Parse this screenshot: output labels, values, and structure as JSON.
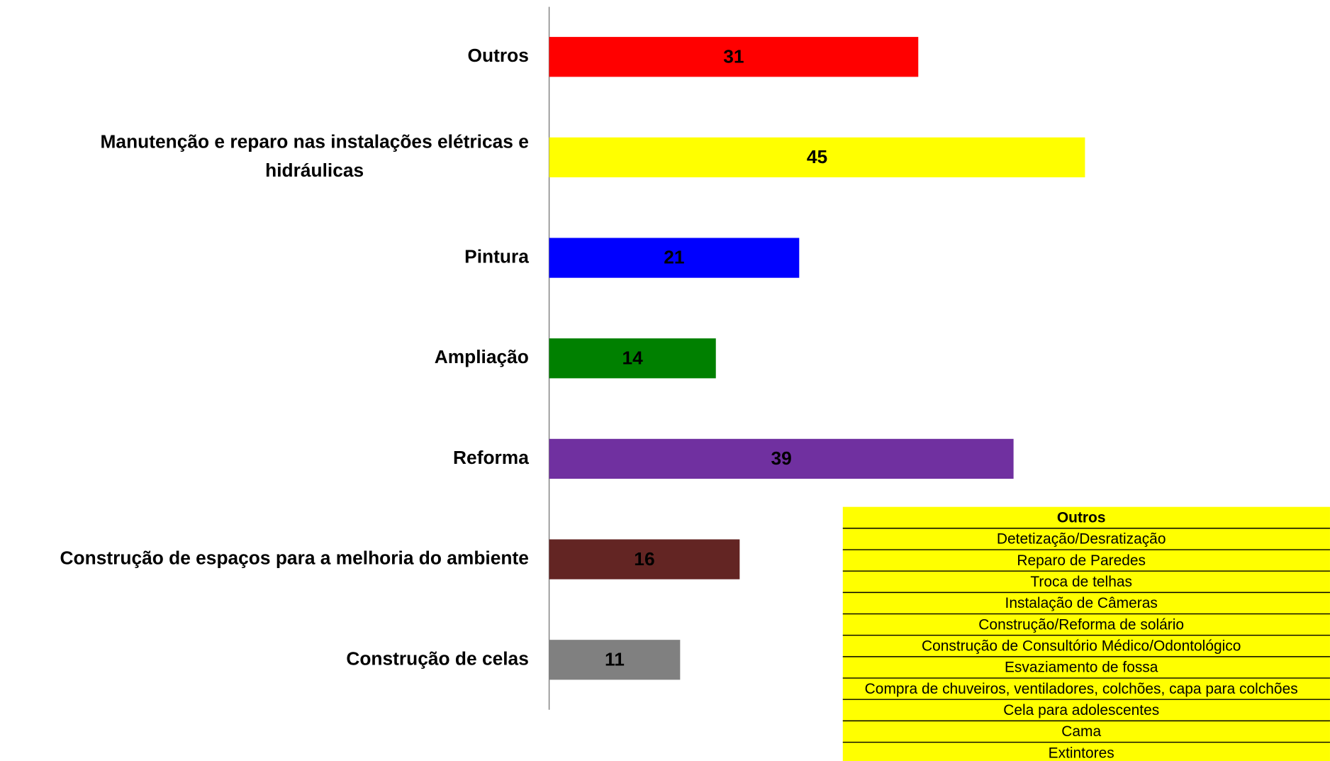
{
  "chart_data": {
    "type": "bar",
    "orientation": "horizontal",
    "categories": [
      "Outros",
      "Manutenção e reparo nas instalações elétricas e hidráulicas",
      "Pintura",
      "Ampliação",
      "Reforma",
      "Construção de espaços para a melhoria do ambiente",
      "Construção de celas"
    ],
    "values": [
      31,
      45,
      21,
      14,
      39,
      16,
      11
    ],
    "colors": [
      "#ff0000",
      "#ffff00",
      "#0000ff",
      "#008000",
      "#7030a0",
      "#632523",
      "#808080"
    ],
    "xlim": [
      0,
      50
    ]
  },
  "table": {
    "header": "Outros",
    "rows": [
      "Detetização/Desratização",
      "Reparo de Paredes",
      "Troca de telhas",
      "Instalação de Câmeras",
      "Construção/Reforma de solário",
      "Construção de Consultório Médico/Odontológico",
      "Esvaziamento de fossa",
      "Compra de chuveiros, ventiladores, colchões, capa para colchões",
      "Cela para adolescentes",
      "Cama",
      "Extintores"
    ],
    "color": "#ffff00"
  }
}
